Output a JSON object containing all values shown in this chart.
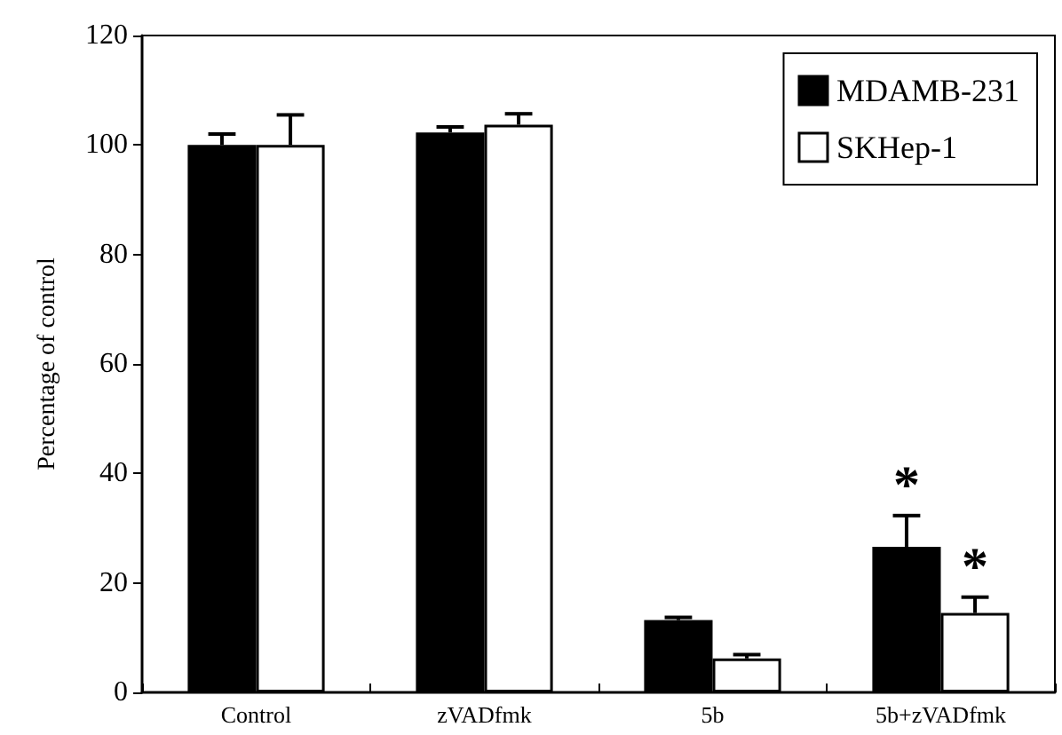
{
  "chart_data": {
    "type": "bar",
    "ylabel": "Percentage of control",
    "categories": [
      "Control",
      "zVADfmk",
      "5b",
      "5b+zVADfmk"
    ],
    "series": [
      {
        "name": "MDAMB-231",
        "color": "#000000",
        "values": [
          100,
          102.3,
          13.2,
          26.6
        ],
        "errors": [
          2,
          1,
          0.5,
          5.7
        ]
      },
      {
        "name": "SKHep-1",
        "color": "#ffffff",
        "values": [
          100,
          103.7,
          6.2,
          14.5
        ],
        "errors": [
          5.5,
          2,
          0.7,
          2.9
        ]
      }
    ],
    "ylim": [
      0,
      120
    ],
    "yticks": [
      0,
      20,
      40,
      60,
      80,
      100,
      120
    ],
    "grid": false,
    "legend": "top right",
    "annotations": [
      {
        "text": "*",
        "x": "5b+zVADfmk",
        "y": 26.6
      },
      {
        "text": "*",
        "x": "5b+zVADfmk",
        "y": 14.5
      }
    ]
  }
}
